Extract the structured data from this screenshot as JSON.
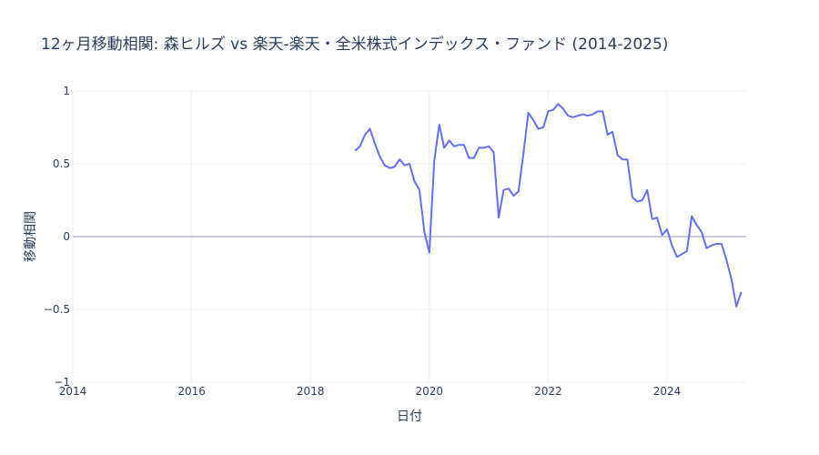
{
  "chart_data": {
    "type": "line",
    "title": "12ヶ月移動相関: 森ヒルズ vs 楽天-楽天・全米株式インデックス・ファンド (2014-2025)",
    "xlabel": "日付",
    "ylabel": "移動相関",
    "xlim": [
      "2014-01",
      "2025-05"
    ],
    "ylim": [
      -1,
      1
    ],
    "x_ticks": [
      "2014",
      "2016",
      "2018",
      "2020",
      "2022",
      "2024"
    ],
    "y_ticks": [
      "1",
      "0.5",
      "0",
      "−0.5",
      "−1"
    ],
    "grid": true,
    "zero_line": true,
    "line_color": "#636efa",
    "series": [
      {
        "name": "移動相関",
        "x": [
          "2018-10",
          "2018-11",
          "2018-12",
          "2019-01",
          "2019-02",
          "2019-03",
          "2019-04",
          "2019-05",
          "2019-06",
          "2019-07",
          "2019-08",
          "2019-09",
          "2019-10",
          "2019-11",
          "2019-12",
          "2020-01",
          "2020-02",
          "2020-03",
          "2020-04",
          "2020-05",
          "2020-06",
          "2020-07",
          "2020-08",
          "2020-09",
          "2020-10",
          "2020-11",
          "2020-12",
          "2021-01",
          "2021-02",
          "2021-03",
          "2021-04",
          "2021-05",
          "2021-06",
          "2021-07",
          "2021-08",
          "2021-09",
          "2021-10",
          "2021-11",
          "2021-12",
          "2022-01",
          "2022-02",
          "2022-03",
          "2022-04",
          "2022-05",
          "2022-06",
          "2022-07",
          "2022-08",
          "2022-09",
          "2022-10",
          "2022-11",
          "2022-12",
          "2023-01",
          "2023-02",
          "2023-03",
          "2023-04",
          "2023-05",
          "2023-06",
          "2023-07",
          "2023-08",
          "2023-09",
          "2023-10",
          "2023-11",
          "2023-12",
          "2024-01",
          "2024-02",
          "2024-03",
          "2024-04",
          "2024-05",
          "2024-06",
          "2024-07",
          "2024-08",
          "2024-09",
          "2024-10",
          "2024-11",
          "2024-12",
          "2025-01",
          "2025-02",
          "2025-03",
          "2025-04"
        ],
        "values": [
          0.59,
          0.62,
          0.7,
          0.74,
          0.64,
          0.55,
          0.49,
          0.47,
          0.48,
          0.53,
          0.49,
          0.5,
          0.38,
          0.32,
          0.03,
          -0.11,
          0.52,
          0.77,
          0.61,
          0.66,
          0.62,
          0.63,
          0.63,
          0.54,
          0.54,
          0.61,
          0.61,
          0.62,
          0.58,
          0.13,
          0.32,
          0.33,
          0.28,
          0.31,
          0.57,
          0.85,
          0.8,
          0.74,
          0.75,
          0.86,
          0.87,
          0.91,
          0.88,
          0.83,
          0.82,
          0.83,
          0.84,
          0.83,
          0.84,
          0.86,
          0.86,
          0.7,
          0.72,
          0.56,
          0.53,
          0.53,
          0.27,
          0.24,
          0.25,
          0.32,
          0.12,
          0.13,
          0.01,
          0.05,
          -0.06,
          -0.14,
          -0.12,
          -0.1,
          0.14,
          0.08,
          0.03,
          -0.08,
          -0.06,
          -0.05,
          -0.05,
          -0.16,
          -0.29,
          -0.48,
          -0.38
        ]
      }
    ]
  }
}
